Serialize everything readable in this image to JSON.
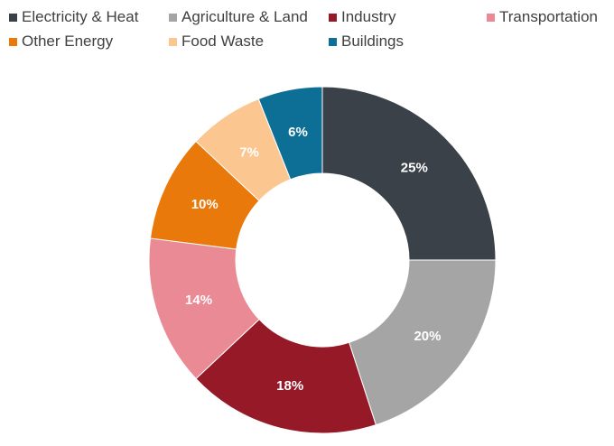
{
  "chart_data": {
    "type": "pie",
    "subtype": "donut",
    "title": "",
    "legend_position": "top",
    "categories": [
      "Electricity & Heat",
      "Agriculture & Land",
      "Industry",
      "Transportation",
      "Other Energy",
      "Food Waste",
      "Buildings"
    ],
    "values": [
      25,
      20,
      18,
      14,
      10,
      7,
      6
    ],
    "labels": [
      "25%",
      "20%",
      "18%",
      "14%",
      "10%",
      "7%",
      "6%"
    ],
    "colors": [
      "#3b4149",
      "#a5a5a5",
      "#951927",
      "#e98a95",
      "#e8790a",
      "#fbc68f",
      "#0d6e96"
    ],
    "start_angle": "12 o'clock",
    "direction": "clockwise",
    "unit": "%"
  },
  "legend": {
    "items": [
      {
        "label": "Electricity & Heat",
        "color": "#3b4149"
      },
      {
        "label": "Agriculture & Land",
        "color": "#a5a5a5"
      },
      {
        "label": "Industry",
        "color": "#951927"
      },
      {
        "label": "Transportation",
        "color": "#e98a95"
      },
      {
        "label": "Other Energy",
        "color": "#e8790a"
      },
      {
        "label": "Food Waste",
        "color": "#fbc68f"
      },
      {
        "label": "Buildings",
        "color": "#0d6e96"
      }
    ]
  }
}
